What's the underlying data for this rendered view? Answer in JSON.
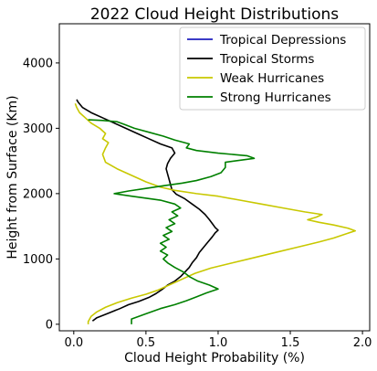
{
  "chart_data": {
    "type": "line",
    "title": "2022 Cloud Height Distributions",
    "xlabel": "Cloud Height Probability (%)",
    "ylabel": "Height from Surface (Km)",
    "xlim": [
      -0.1,
      2.05
    ],
    "ylim": [
      -100,
      4600
    ],
    "xticks": [
      0.0,
      0.5,
      1.0,
      1.5,
      2.0
    ],
    "xtick_labels": [
      "0.0",
      "0.5",
      "1.0",
      "1.5",
      "2.0"
    ],
    "yticks": [
      0,
      1000,
      2000,
      3000,
      4000
    ],
    "ytick_labels": [
      "0",
      "1000",
      "2000",
      "3000",
      "4000"
    ],
    "grid": false,
    "legend_position": "top-right",
    "series": [
      {
        "name": "Tropical Depressions",
        "color": "#1f1fbf",
        "points": []
      },
      {
        "name": "Tropical Storms",
        "color": "#000000",
        "points": [
          [
            0.13,
            50
          ],
          [
            0.16,
            100
          ],
          [
            0.24,
            170
          ],
          [
            0.32,
            240
          ],
          [
            0.38,
            300
          ],
          [
            0.45,
            350
          ],
          [
            0.52,
            410
          ],
          [
            0.57,
            470
          ],
          [
            0.61,
            530
          ],
          [
            0.65,
            600
          ],
          [
            0.7,
            660
          ],
          [
            0.74,
            730
          ],
          [
            0.77,
            800
          ],
          [
            0.8,
            870
          ],
          [
            0.82,
            940
          ],
          [
            0.85,
            1020
          ],
          [
            0.87,
            1100
          ],
          [
            0.9,
            1180
          ],
          [
            0.93,
            1260
          ],
          [
            0.96,
            1340
          ],
          [
            0.98,
            1400
          ],
          [
            1.0,
            1440
          ],
          [
            0.98,
            1480
          ],
          [
            0.96,
            1540
          ],
          [
            0.94,
            1600
          ],
          [
            0.91,
            1680
          ],
          [
            0.87,
            1760
          ],
          [
            0.82,
            1840
          ],
          [
            0.77,
            1920
          ],
          [
            0.71,
            1990
          ],
          [
            0.68,
            2060
          ],
          [
            0.67,
            2140
          ],
          [
            0.66,
            2220
          ],
          [
            0.65,
            2300
          ],
          [
            0.64,
            2380
          ],
          [
            0.65,
            2460
          ],
          [
            0.67,
            2540
          ],
          [
            0.7,
            2620
          ],
          [
            0.68,
            2700
          ],
          [
            0.6,
            2760
          ],
          [
            0.52,
            2840
          ],
          [
            0.44,
            2920
          ],
          [
            0.36,
            3000
          ],
          [
            0.28,
            3080
          ],
          [
            0.2,
            3160
          ],
          [
            0.12,
            3240
          ],
          [
            0.06,
            3320
          ],
          [
            0.03,
            3400
          ],
          [
            0.02,
            3440
          ]
        ]
      },
      {
        "name": "Weak Hurricanes",
        "color": "#c8c800",
        "points": [
          [
            0.1,
            0
          ],
          [
            0.1,
            40
          ],
          [
            0.12,
            120
          ],
          [
            0.16,
            190
          ],
          [
            0.22,
            260
          ],
          [
            0.3,
            330
          ],
          [
            0.4,
            400
          ],
          [
            0.5,
            460
          ],
          [
            0.58,
            520
          ],
          [
            0.64,
            580
          ],
          [
            0.7,
            640
          ],
          [
            0.76,
            700
          ],
          [
            0.84,
            780
          ],
          [
            0.95,
            860
          ],
          [
            1.1,
            940
          ],
          [
            1.25,
            1020
          ],
          [
            1.4,
            1100
          ],
          [
            1.55,
            1180
          ],
          [
            1.7,
            1260
          ],
          [
            1.8,
            1320
          ],
          [
            1.88,
            1380
          ],
          [
            1.95,
            1430
          ],
          [
            1.9,
            1470
          ],
          [
            1.8,
            1520
          ],
          [
            1.7,
            1560
          ],
          [
            1.62,
            1600
          ],
          [
            1.68,
            1640
          ],
          [
            1.72,
            1680
          ],
          [
            1.6,
            1720
          ],
          [
            1.45,
            1780
          ],
          [
            1.3,
            1840
          ],
          [
            1.15,
            1900
          ],
          [
            1.0,
            1960
          ],
          [
            0.85,
            2000
          ],
          [
            0.7,
            2050
          ],
          [
            0.6,
            2100
          ],
          [
            0.5,
            2180
          ],
          [
            0.4,
            2280
          ],
          [
            0.3,
            2380
          ],
          [
            0.22,
            2480
          ],
          [
            0.2,
            2600
          ],
          [
            0.22,
            2700
          ],
          [
            0.24,
            2780
          ],
          [
            0.2,
            2840
          ],
          [
            0.22,
            2920
          ],
          [
            0.18,
            3000
          ],
          [
            0.12,
            3080
          ],
          [
            0.08,
            3160
          ],
          [
            0.04,
            3240
          ],
          [
            0.02,
            3320
          ],
          [
            0.01,
            3380
          ]
        ]
      },
      {
        "name": "Strong Hurricanes",
        "color": "#008000",
        "points": [
          [
            0.4,
            0
          ],
          [
            0.4,
            80
          ],
          [
            0.5,
            160
          ],
          [
            0.6,
            240
          ],
          [
            0.7,
            300
          ],
          [
            0.78,
            360
          ],
          [
            0.85,
            420
          ],
          [
            0.92,
            480
          ],
          [
            1.0,
            540
          ],
          [
            0.94,
            600
          ],
          [
            0.86,
            660
          ],
          [
            0.8,
            730
          ],
          [
            0.76,
            800
          ],
          [
            0.7,
            870
          ],
          [
            0.65,
            940
          ],
          [
            0.62,
            1000
          ],
          [
            0.65,
            1060
          ],
          [
            0.6,
            1120
          ],
          [
            0.64,
            1180
          ],
          [
            0.6,
            1240
          ],
          [
            0.66,
            1300
          ],
          [
            0.62,
            1360
          ],
          [
            0.68,
            1420
          ],
          [
            0.64,
            1480
          ],
          [
            0.7,
            1540
          ],
          [
            0.66,
            1600
          ],
          [
            0.72,
            1660
          ],
          [
            0.68,
            1720
          ],
          [
            0.74,
            1780
          ],
          [
            0.7,
            1840
          ],
          [
            0.6,
            1900
          ],
          [
            0.4,
            1960
          ],
          [
            0.28,
            2000
          ],
          [
            0.38,
            2040
          ],
          [
            0.5,
            2080
          ],
          [
            0.62,
            2120
          ],
          [
            0.75,
            2160
          ],
          [
            0.85,
            2200
          ],
          [
            0.95,
            2260
          ],
          [
            1.02,
            2320
          ],
          [
            1.05,
            2400
          ],
          [
            1.05,
            2480
          ],
          [
            1.25,
            2540
          ],
          [
            1.2,
            2580
          ],
          [
            1.0,
            2620
          ],
          [
            0.85,
            2660
          ],
          [
            0.78,
            2700
          ],
          [
            0.8,
            2760
          ],
          [
            0.7,
            2820
          ],
          [
            0.62,
            2880
          ],
          [
            0.52,
            2940
          ],
          [
            0.42,
            3000
          ],
          [
            0.35,
            3060
          ],
          [
            0.3,
            3100
          ],
          [
            0.2,
            3120
          ],
          [
            0.1,
            3130
          ]
        ]
      }
    ]
  }
}
